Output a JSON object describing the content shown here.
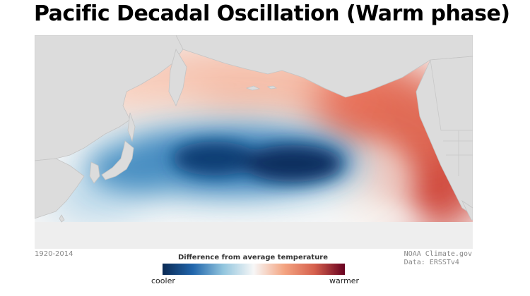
{
  "title": "Pacific Decadal Oscillation (Warm phase)",
  "period": "1920-2014",
  "legend": {
    "title": "Difference from average temperature",
    "low_label": "cooler",
    "high_label": "warmer",
    "colors": [
      "#0b2a54",
      "#2166ac",
      "#92c5de",
      "#f7f7f7",
      "#f4a582",
      "#d6604d",
      "#67001f"
    ]
  },
  "credit": {
    "org": "NOAA Climate.gov",
    "data_source": "Data: ERSSTv4"
  },
  "map": {
    "region": "North Pacific Ocean",
    "land_color": "#dcdcdc",
    "no_data_color": "#f2f2f2"
  }
}
